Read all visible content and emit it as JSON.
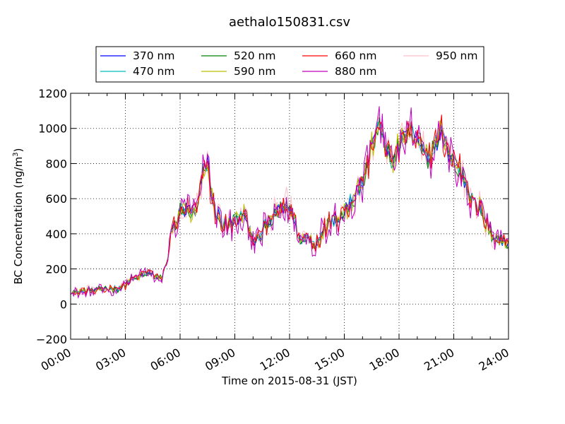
{
  "chart_data": {
    "type": "line",
    "title": "aethalo150831.csv",
    "xlabel": "Time on 2015-08-31 (JST)",
    "ylabel": {
      "main": "BC Concentration (ng/m",
      "sup": "3",
      "end": ")"
    },
    "xlim": [
      0,
      24
    ],
    "ylim": [
      -200,
      1200
    ],
    "x_ticks": [
      {
        "value": 0,
        "label": "00:00"
      },
      {
        "value": 3,
        "label": "03:00"
      },
      {
        "value": 6,
        "label": "06:00"
      },
      {
        "value": 9,
        "label": "09:00"
      },
      {
        "value": 12,
        "label": "12:00"
      },
      {
        "value": 15,
        "label": "15:00"
      },
      {
        "value": 18,
        "label": "18:00"
      },
      {
        "value": 21,
        "label": "21:00"
      },
      {
        "value": 24,
        "label": "24:00"
      }
    ],
    "y_ticks": [
      {
        "value": -200,
        "label": "−200"
      },
      {
        "value": 0,
        "label": "0"
      },
      {
        "value": 200,
        "label": "200"
      },
      {
        "value": 400,
        "label": "400"
      },
      {
        "value": 600,
        "label": "600"
      },
      {
        "value": 800,
        "label": "800"
      },
      {
        "value": 1000,
        "label": "1000"
      },
      {
        "value": 1200,
        "label": "1200"
      }
    ],
    "grid": true,
    "legend_position": "top-center",
    "series": [
      {
        "name": "370 nm",
        "color": "#0000ff",
        "amplitude": 45
      },
      {
        "name": "470 nm",
        "color": "#00bfbf",
        "amplitude": 45
      },
      {
        "name": "520 nm",
        "color": "#008000",
        "amplitude": 50
      },
      {
        "name": "590 nm",
        "color": "#bfbf00",
        "amplitude": 55
      },
      {
        "name": "660 nm",
        "color": "#ff0000",
        "amplitude": 65
      },
      {
        "name": "880 nm",
        "color": "#bf00bf",
        "amplitude": 95
      },
      {
        "name": "950 nm",
        "color": "#ffc0cb",
        "amplitude": 80
      }
    ],
    "base_profile": {
      "x": [
        0,
        0.5,
        1,
        1.5,
        2,
        2.5,
        3,
        3.3,
        3.6,
        4,
        4.3,
        4.6,
        5,
        5.3,
        5.5,
        5.8,
        6,
        6.3,
        6.6,
        7,
        7.2,
        7.5,
        7.8,
        8,
        8.3,
        8.6,
        9,
        9.2,
        9.5,
        9.8,
        10,
        10.3,
        10.6,
        11,
        11.3,
        11.6,
        12,
        12.3,
        12.6,
        13,
        13.3,
        13.6,
        14,
        14.3,
        14.6,
        15,
        15.3,
        15.6,
        16,
        16.3,
        16.6,
        17,
        17.3,
        17.6,
        18,
        18.3,
        18.6,
        19,
        19.3,
        19.6,
        20,
        20.3,
        20.6,
        21,
        21.3,
        21.6,
        22,
        22.3,
        22.6,
        23,
        23.3,
        23.6,
        24
      ],
      "y": [
        60,
        70,
        80,
        75,
        90,
        85,
        110,
        140,
        150,
        170,
        180,
        160,
        140,
        250,
        400,
        470,
        520,
        560,
        500,
        540,
        720,
        800,
        580,
        520,
        470,
        450,
        470,
        500,
        520,
        420,
        380,
        360,
        430,
        480,
        520,
        560,
        560,
        470,
        350,
        390,
        340,
        370,
        450,
        500,
        480,
        520,
        580,
        620,
        700,
        800,
        940,
        1000,
        920,
        780,
        900,
        960,
        990,
        920,
        880,
        840,
        900,
        1000,
        900,
        800,
        780,
        710,
        620,
        560,
        500,
        400,
        380,
        360,
        340
      ]
    }
  }
}
